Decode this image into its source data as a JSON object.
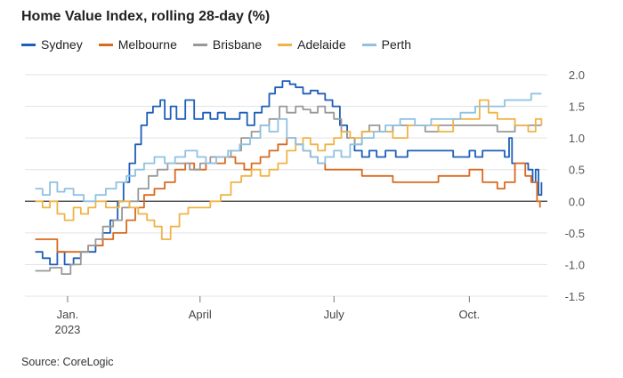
{
  "title": "Home Value Index, rolling 28-day (%)",
  "source": "Source: CoreLogic",
  "chart_data": {
    "type": "line",
    "title": "Home Value Index, rolling 28-day (%)",
    "ylim": [
      -1.5,
      2.0
    ],
    "yticks": [
      2.0,
      1.5,
      1.0,
      0.5,
      0.0,
      -0.5,
      -1.0,
      -1.5
    ],
    "ytick_labels": [
      "2.0",
      "1.5",
      "1.0",
      "0.5",
      "0.0",
      "-0.5",
      "-1.0",
      "-1.5"
    ],
    "xlim": [
      "2022-12-03",
      "2023-11-23"
    ],
    "xticks": [
      {
        "date": "2023-01-01",
        "label": "Jan.",
        "sublabel": "2023"
      },
      {
        "date": "2023-04-01",
        "label": "April",
        "sublabel": ""
      },
      {
        "date": "2023-07-01",
        "label": "July",
        "sublabel": ""
      },
      {
        "date": "2023-10-01",
        "label": "Oct.",
        "sublabel": ""
      }
    ],
    "legend_position": "top-left",
    "grid": "horizontal",
    "series": [
      {
        "name": "Sydney",
        "color": "#1f5fb8",
        "points": [
          [
            "2022-12-10",
            -0.8
          ],
          [
            "2022-12-15",
            -0.9
          ],
          [
            "2022-12-20",
            -1.0
          ],
          [
            "2022-12-25",
            -0.8
          ],
          [
            "2022-12-30",
            -1.0
          ],
          [
            "2023-01-05",
            -0.9
          ],
          [
            "2023-01-10",
            -0.8
          ],
          [
            "2023-01-15",
            -0.8
          ],
          [
            "2023-01-20",
            -0.7
          ],
          [
            "2023-01-25",
            -0.5
          ],
          [
            "2023-01-30",
            -0.3
          ],
          [
            "2023-02-04",
            0.0
          ],
          [
            "2023-02-08",
            0.3
          ],
          [
            "2023-02-12",
            0.6
          ],
          [
            "2023-02-16",
            0.9
          ],
          [
            "2023-02-20",
            1.2
          ],
          [
            "2023-02-24",
            1.4
          ],
          [
            "2023-02-28",
            1.5
          ],
          [
            "2023-03-05",
            1.6
          ],
          [
            "2023-03-08",
            1.3
          ],
          [
            "2023-03-12",
            1.5
          ],
          [
            "2023-03-16",
            1.3
          ],
          [
            "2023-03-22",
            1.6
          ],
          [
            "2023-03-28",
            1.3
          ],
          [
            "2023-04-03",
            1.4
          ],
          [
            "2023-04-08",
            1.3
          ],
          [
            "2023-04-13",
            1.4
          ],
          [
            "2023-04-18",
            1.3
          ],
          [
            "2023-04-23",
            1.3
          ],
          [
            "2023-04-28",
            1.4
          ],
          [
            "2023-05-03",
            1.2
          ],
          [
            "2023-05-08",
            1.4
          ],
          [
            "2023-05-13",
            1.5
          ],
          [
            "2023-05-18",
            1.7
          ],
          [
            "2023-05-22",
            1.8
          ],
          [
            "2023-05-27",
            1.9
          ],
          [
            "2023-06-01",
            1.85
          ],
          [
            "2023-06-05",
            1.8
          ],
          [
            "2023-06-10",
            1.7
          ],
          [
            "2023-06-15",
            1.75
          ],
          [
            "2023-06-20",
            1.7
          ],
          [
            "2023-06-25",
            1.6
          ],
          [
            "2023-06-30",
            1.5
          ],
          [
            "2023-07-05",
            1.2
          ],
          [
            "2023-07-10",
            1.0
          ],
          [
            "2023-07-15",
            0.8
          ],
          [
            "2023-07-20",
            0.7
          ],
          [
            "2023-07-25",
            0.8
          ],
          [
            "2023-07-30",
            0.7
          ],
          [
            "2023-08-05",
            0.8
          ],
          [
            "2023-08-12",
            0.7
          ],
          [
            "2023-08-20",
            0.8
          ],
          [
            "2023-09-01",
            0.8
          ],
          [
            "2023-09-10",
            0.8
          ],
          [
            "2023-09-20",
            0.7
          ],
          [
            "2023-10-01",
            0.8
          ],
          [
            "2023-10-05",
            0.7
          ],
          [
            "2023-10-10",
            0.8
          ],
          [
            "2023-10-20",
            0.8
          ],
          [
            "2023-10-25",
            0.7
          ],
          [
            "2023-10-28",
            1.0
          ],
          [
            "2023-10-30",
            0.6
          ],
          [
            "2023-11-05",
            0.6
          ],
          [
            "2023-11-10",
            0.5
          ],
          [
            "2023-11-13",
            0.3
          ],
          [
            "2023-11-15",
            0.5
          ],
          [
            "2023-11-17",
            0.1
          ],
          [
            "2023-11-19",
            0.3
          ]
        ]
      },
      {
        "name": "Melbourne",
        "color": "#d96a1f",
        "points": [
          [
            "2022-12-10",
            -0.6
          ],
          [
            "2022-12-20",
            -0.6
          ],
          [
            "2022-12-25",
            -0.8
          ],
          [
            "2023-01-05",
            -0.8
          ],
          [
            "2023-01-15",
            -0.7
          ],
          [
            "2023-01-25",
            -0.6
          ],
          [
            "2023-02-01",
            -0.5
          ],
          [
            "2023-02-10",
            -0.3
          ],
          [
            "2023-02-16",
            -0.1
          ],
          [
            "2023-02-22",
            0.1
          ],
          [
            "2023-03-01",
            0.2
          ],
          [
            "2023-03-08",
            0.3
          ],
          [
            "2023-03-15",
            0.5
          ],
          [
            "2023-03-22",
            0.6
          ],
          [
            "2023-03-28",
            0.5
          ],
          [
            "2023-04-05",
            0.6
          ],
          [
            "2023-04-12",
            0.6
          ],
          [
            "2023-04-18",
            0.7
          ],
          [
            "2023-04-25",
            0.6
          ],
          [
            "2023-05-01",
            0.5
          ],
          [
            "2023-05-06",
            0.6
          ],
          [
            "2023-05-12",
            0.7
          ],
          [
            "2023-05-18",
            0.8
          ],
          [
            "2023-05-24",
            0.9
          ],
          [
            "2023-05-30",
            1.0
          ],
          [
            "2023-06-05",
            0.9
          ],
          [
            "2023-06-10",
            0.8
          ],
          [
            "2023-06-15",
            0.7
          ],
          [
            "2023-06-20",
            0.6
          ],
          [
            "2023-06-25",
            0.5
          ],
          [
            "2023-07-01",
            0.5
          ],
          [
            "2023-07-10",
            0.5
          ],
          [
            "2023-07-20",
            0.4
          ],
          [
            "2023-08-01",
            0.4
          ],
          [
            "2023-08-10",
            0.3
          ],
          [
            "2023-08-20",
            0.3
          ],
          [
            "2023-09-01",
            0.3
          ],
          [
            "2023-09-10",
            0.4
          ],
          [
            "2023-09-20",
            0.4
          ],
          [
            "2023-10-01",
            0.5
          ],
          [
            "2023-10-10",
            0.3
          ],
          [
            "2023-10-20",
            0.2
          ],
          [
            "2023-10-25",
            0.3
          ],
          [
            "2023-10-28",
            0.3
          ],
          [
            "2023-11-01",
            0.6
          ],
          [
            "2023-11-08",
            0.4
          ],
          [
            "2023-11-12",
            0.3
          ],
          [
            "2023-11-16",
            0.0
          ],
          [
            "2023-11-18",
            -0.1
          ]
        ]
      },
      {
        "name": "Brisbane",
        "color": "#999999",
        "points": [
          [
            "2022-12-10",
            -1.1
          ],
          [
            "2022-12-20",
            -1.05
          ],
          [
            "2022-12-28",
            -1.15
          ],
          [
            "2023-01-03",
            -1.0
          ],
          [
            "2023-01-10",
            -0.8
          ],
          [
            "2023-01-15",
            -0.7
          ],
          [
            "2023-01-20",
            -0.6
          ],
          [
            "2023-01-25",
            -0.4
          ],
          [
            "2023-02-01",
            -0.3
          ],
          [
            "2023-02-07",
            -0.1
          ],
          [
            "2023-02-12",
            0.0
          ],
          [
            "2023-02-18",
            0.2
          ],
          [
            "2023-02-25",
            0.4
          ],
          [
            "2023-03-03",
            0.5
          ],
          [
            "2023-03-10",
            0.6
          ],
          [
            "2023-03-18",
            0.6
          ],
          [
            "2023-03-25",
            0.5
          ],
          [
            "2023-04-01",
            0.6
          ],
          [
            "2023-04-08",
            0.7
          ],
          [
            "2023-04-15",
            0.7
          ],
          [
            "2023-04-22",
            0.8
          ],
          [
            "2023-04-29",
            1.0
          ],
          [
            "2023-05-06",
            1.1
          ],
          [
            "2023-05-12",
            1.2
          ],
          [
            "2023-05-18",
            1.3
          ],
          [
            "2023-05-25",
            1.5
          ],
          [
            "2023-05-30",
            1.4
          ],
          [
            "2023-06-05",
            1.5
          ],
          [
            "2023-06-10",
            1.45
          ],
          [
            "2023-06-15",
            1.4
          ],
          [
            "2023-06-20",
            1.5
          ],
          [
            "2023-06-25",
            1.4
          ],
          [
            "2023-07-01",
            1.3
          ],
          [
            "2023-07-06",
            1.1
          ],
          [
            "2023-07-10",
            1.0
          ],
          [
            "2023-07-15",
            0.9
          ],
          [
            "2023-07-20",
            1.1
          ],
          [
            "2023-07-25",
            1.2
          ],
          [
            "2023-08-01",
            1.1
          ],
          [
            "2023-08-10",
            1.2
          ],
          [
            "2023-08-20",
            1.2
          ],
          [
            "2023-09-01",
            1.1
          ],
          [
            "2023-09-10",
            1.2
          ],
          [
            "2023-09-20",
            1.2
          ],
          [
            "2023-10-01",
            1.2
          ],
          [
            "2023-10-10",
            1.2
          ],
          [
            "2023-10-20",
            1.1
          ],
          [
            "2023-11-01",
            1.2
          ],
          [
            "2023-11-10",
            1.2
          ],
          [
            "2023-11-19",
            1.2
          ]
        ]
      },
      {
        "name": "Adelaide",
        "color": "#f0b347",
        "points": [
          [
            "2022-12-10",
            0.0
          ],
          [
            "2022-12-15",
            -0.1
          ],
          [
            "2022-12-20",
            0.0
          ],
          [
            "2022-12-25",
            -0.2
          ],
          [
            "2022-12-30",
            -0.3
          ],
          [
            "2023-01-05",
            -0.1
          ],
          [
            "2023-01-10",
            -0.2
          ],
          [
            "2023-01-15",
            -0.1
          ],
          [
            "2023-01-20",
            0.0
          ],
          [
            "2023-01-27",
            -0.1
          ],
          [
            "2023-02-05",
            0.0
          ],
          [
            "2023-02-12",
            -0.1
          ],
          [
            "2023-02-18",
            -0.2
          ],
          [
            "2023-02-24",
            -0.3
          ],
          [
            "2023-03-01",
            -0.4
          ],
          [
            "2023-03-06",
            -0.6
          ],
          [
            "2023-03-12",
            -0.4
          ],
          [
            "2023-03-18",
            -0.2
          ],
          [
            "2023-03-24",
            -0.1
          ],
          [
            "2023-04-01",
            -0.1
          ],
          [
            "2023-04-08",
            0.0
          ],
          [
            "2023-04-15",
            0.1
          ],
          [
            "2023-04-22",
            0.3
          ],
          [
            "2023-04-29",
            0.4
          ],
          [
            "2023-05-06",
            0.5
          ],
          [
            "2023-05-12",
            0.4
          ],
          [
            "2023-05-18",
            0.5
          ],
          [
            "2023-05-24",
            0.6
          ],
          [
            "2023-05-30",
            0.8
          ],
          [
            "2023-06-05",
            0.9
          ],
          [
            "2023-06-10",
            1.0
          ],
          [
            "2023-06-15",
            0.9
          ],
          [
            "2023-06-20",
            0.8
          ],
          [
            "2023-06-25",
            0.9
          ],
          [
            "2023-07-01",
            1.0
          ],
          [
            "2023-07-06",
            1.1
          ],
          [
            "2023-07-12",
            1.0
          ],
          [
            "2023-07-20",
            1.1
          ],
          [
            "2023-08-01",
            1.1
          ],
          [
            "2023-08-10",
            1.0
          ],
          [
            "2023-08-20",
            1.2
          ],
          [
            "2023-09-01",
            1.2
          ],
          [
            "2023-09-10",
            1.1
          ],
          [
            "2023-09-20",
            1.3
          ],
          [
            "2023-10-01",
            1.3
          ],
          [
            "2023-10-08",
            1.6
          ],
          [
            "2023-10-14",
            1.4
          ],
          [
            "2023-10-20",
            1.3
          ],
          [
            "2023-11-01",
            1.2
          ],
          [
            "2023-11-10",
            1.1
          ],
          [
            "2023-11-15",
            1.3
          ],
          [
            "2023-11-19",
            1.2
          ]
        ]
      },
      {
        "name": "Perth",
        "color": "#8fc1e3",
        "points": [
          [
            "2022-12-10",
            0.2
          ],
          [
            "2022-12-15",
            0.1
          ],
          [
            "2022-12-20",
            0.3
          ],
          [
            "2022-12-25",
            0.15
          ],
          [
            "2022-12-30",
            0.2
          ],
          [
            "2023-01-05",
            0.1
          ],
          [
            "2023-01-12",
            0.0
          ],
          [
            "2023-01-20",
            0.1
          ],
          [
            "2023-01-27",
            0.2
          ],
          [
            "2023-02-03",
            0.3
          ],
          [
            "2023-02-10",
            0.4
          ],
          [
            "2023-02-16",
            0.5
          ],
          [
            "2023-02-22",
            0.6
          ],
          [
            "2023-03-01",
            0.7
          ],
          [
            "2023-03-08",
            0.6
          ],
          [
            "2023-03-15",
            0.7
          ],
          [
            "2023-03-22",
            0.8
          ],
          [
            "2023-03-30",
            0.7
          ],
          [
            "2023-04-05",
            0.6
          ],
          [
            "2023-04-12",
            0.7
          ],
          [
            "2023-04-20",
            0.8
          ],
          [
            "2023-04-28",
            0.9
          ],
          [
            "2023-05-05",
            1.0
          ],
          [
            "2023-05-12",
            1.2
          ],
          [
            "2023-05-18",
            1.1
          ],
          [
            "2023-05-24",
            1.3
          ],
          [
            "2023-05-30",
            1.0
          ],
          [
            "2023-06-05",
            0.9
          ],
          [
            "2023-06-10",
            0.8
          ],
          [
            "2023-06-15",
            0.7
          ],
          [
            "2023-06-20",
            0.6
          ],
          [
            "2023-06-25",
            0.7
          ],
          [
            "2023-07-01",
            0.8
          ],
          [
            "2023-07-06",
            0.7
          ],
          [
            "2023-07-12",
            0.9
          ],
          [
            "2023-07-20",
            1.0
          ],
          [
            "2023-07-28",
            1.1
          ],
          [
            "2023-08-05",
            1.2
          ],
          [
            "2023-08-15",
            1.3
          ],
          [
            "2023-08-25",
            1.2
          ],
          [
            "2023-09-05",
            1.3
          ],
          [
            "2023-09-15",
            1.3
          ],
          [
            "2023-09-25",
            1.4
          ],
          [
            "2023-10-05",
            1.5
          ],
          [
            "2023-10-15",
            1.5
          ],
          [
            "2023-10-25",
            1.6
          ],
          [
            "2023-11-05",
            1.6
          ],
          [
            "2023-11-12",
            1.7
          ],
          [
            "2023-11-19",
            1.7
          ]
        ]
      }
    ]
  }
}
